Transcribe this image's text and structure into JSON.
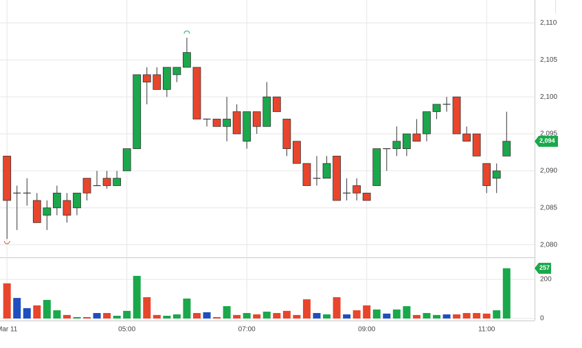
{
  "chart_data": {
    "type": "candlestick",
    "x": [
      180,
      190,
      200,
      210,
      220,
      230,
      240,
      250,
      260,
      270,
      280,
      290,
      300,
      310,
      320,
      330,
      340,
      350,
      360,
      370,
      380,
      390,
      400,
      410,
      420,
      430,
      440,
      450,
      460,
      470,
      480,
      490,
      500,
      510,
      520,
      530,
      540,
      550,
      560,
      570,
      580,
      590,
      600,
      610,
      620,
      630,
      640,
      650,
      660,
      670,
      680
    ],
    "open": [
      2092,
      2087,
      2087,
      2086,
      2084,
      2085,
      2086,
      2085,
      2089,
      2088,
      2089,
      2088,
      2090,
      2093,
      2103,
      2103,
      2101,
      2103,
      2104,
      2104,
      2097,
      2097,
      2096,
      2098,
      2094,
      2098,
      2096,
      2100,
      2097,
      2094,
      2091,
      2089,
      2089,
      2092,
      2087,
      2088,
      2087,
      2088,
      2093,
      2093,
      2093,
      2095,
      2095,
      2098,
      2099,
      2100,
      2095,
      2095,
      2091,
      2089,
      2092
    ],
    "high": [
      2092,
      2088,
      2089,
      2087,
      2086,
      2088,
      2087,
      2087,
      2089,
      2090,
      2090,
      2090,
      2093,
      2103,
      2104,
      2104,
      2104,
      2104,
      2108,
      2104,
      2097,
      2097,
      2100,
      2099,
      2098,
      2098,
      2102,
      2100,
      2097,
      2094,
      2091,
      2092,
      2092,
      2092,
      2089,
      2089,
      2087,
      2093,
      2093,
      2096,
      2095,
      2097,
      2098,
      2099,
      2100,
      2100,
      2096,
      2095,
      2091,
      2091,
      2098
    ],
    "low": [
      2080.8,
      2082,
      2085.3,
      2083,
      2082,
      2084,
      2083,
      2084,
      2086,
      2088,
      2087.6,
      2088,
      2090,
      2093,
      2099,
      2101,
      2100,
      2102,
      2104,
      2097,
      2096,
      2096,
      2094,
      2095,
      2093,
      2095,
      2096,
      2098,
      2092,
      2091,
      2088,
      2088,
      2089,
      2086,
      2086,
      2086,
      2086,
      2088,
      2090,
      2092,
      2092,
      2094,
      2094,
      2097,
      2098,
      2095,
      2094,
      2092,
      2087,
      2087,
      2092
    ],
    "close": [
      2086,
      2087,
      2087,
      2083,
      2085,
      2087,
      2084,
      2087,
      2087,
      2088,
      2088,
      2089,
      2093,
      2103,
      2102,
      2101,
      2104,
      2104,
      2106,
      2097,
      2097,
      2096,
      2097,
      2095,
      2098,
      2096,
      2100,
      2098,
      2093,
      2091,
      2088,
      2089,
      2091,
      2086,
      2087,
      2087,
      2086,
      2093,
      2093,
      2094,
      2095,
      2094,
      2098,
      2099,
      2099,
      2095,
      2094,
      2092,
      2088,
      2090,
      2094
    ],
    "volume": [
      180,
      105,
      53,
      67,
      95,
      42,
      18,
      7,
      7,
      28,
      28,
      14,
      39,
      218,
      109,
      18,
      14,
      21,
      102,
      28,
      32,
      7,
      63,
      18,
      28,
      21,
      35,
      28,
      39,
      18,
      98,
      28,
      21,
      109,
      21,
      42,
      67,
      46,
      25,
      46,
      63,
      18,
      28,
      18,
      21,
      21,
      28,
      28,
      25,
      42,
      257
    ],
    "colors": {
      "up": "#1aa84b",
      "down": "#e8452c",
      "flat": "#1f4fbf"
    },
    "xlim": [
      173,
      708
    ],
    "xticks": [
      {
        "value": 180,
        "label": "Mar 11"
      },
      {
        "value": 300,
        "label": "05:00"
      },
      {
        "value": 420,
        "label": "07:00"
      },
      {
        "value": 540,
        "label": "09:00"
      },
      {
        "value": 660,
        "label": "11:00"
      }
    ],
    "ylim": [
      2078.3,
      2113.1
    ],
    "yticks": [
      {
        "value": 2080,
        "label": "2,080"
      },
      {
        "value": 2085,
        "label": "2,085"
      },
      {
        "value": 2090,
        "label": "2,090"
      },
      {
        "value": 2095,
        "label": "2,095"
      },
      {
        "value": 2100,
        "label": "2,100"
      },
      {
        "value": 2105,
        "label": "2,105"
      },
      {
        "value": 2110,
        "label": "2,110"
      }
    ],
    "volume_lim": [
      -10.5,
      302
    ],
    "volume_ticks": [
      0,
      200
    ],
    "last_price": {
      "value": 2094,
      "label": "2,094"
    },
    "last_volume": {
      "value": 257,
      "label": "257"
    },
    "grid": true
  }
}
